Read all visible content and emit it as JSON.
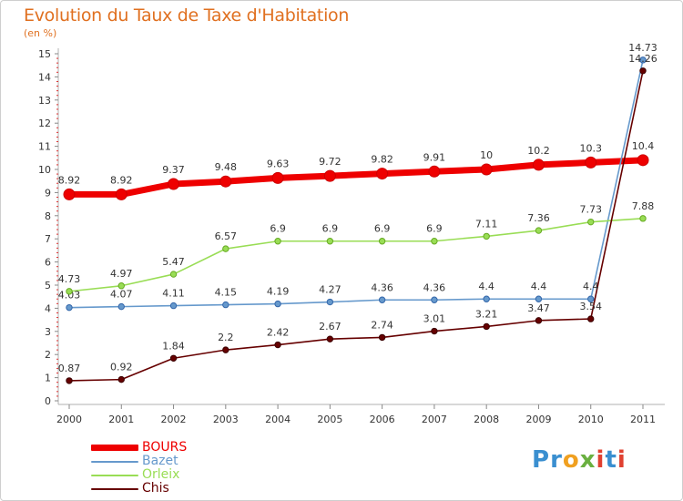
{
  "title": "Evolution du Taux de Taxe d'Habitation",
  "subtitle": "(en %)",
  "logo": {
    "text": "Proxiti",
    "colors": [
      "#3a8fd0",
      "#f0a020",
      "#6ab040",
      "#e04030"
    ]
  },
  "colors": {
    "BOURS": "#ee0000",
    "Bazet": "#6699cc",
    "Orleix": "#99dd55",
    "Chis": "#660000"
  },
  "chart_data": {
    "type": "line",
    "title": "Evolution du Taux de Taxe d'Habitation",
    "ylabel": "(en %)",
    "x": [
      "2000",
      "2001",
      "2002",
      "2003",
      "2004",
      "2005",
      "2006",
      "2007",
      "2008",
      "2009",
      "2010",
      "2011"
    ],
    "ylim": [
      0,
      15
    ],
    "yticks": [
      "0",
      "1",
      "2",
      "3",
      "4",
      "5",
      "6",
      "7",
      "8",
      "9",
      "10",
      "11",
      "12",
      "13",
      "14",
      "15"
    ],
    "grid": false,
    "legend": "bottom-left",
    "series": [
      {
        "name": "BOURS",
        "values": [
          8.92,
          8.92,
          9.37,
          9.48,
          9.63,
          9.72,
          9.82,
          9.91,
          10,
          10.2,
          10.3,
          10.4
        ],
        "labels": [
          "8.92",
          "8.92",
          "9.37",
          "9.48",
          "9.63",
          "9.72",
          "9.82",
          "9.91",
          "10",
          "10.2",
          "10.3",
          "10.4"
        ]
      },
      {
        "name": "Bazet",
        "values": [
          4.03,
          4.07,
          4.11,
          4.15,
          4.19,
          4.27,
          4.36,
          4.36,
          4.4,
          4.4,
          4.4,
          14.73
        ],
        "labels": [
          "4.03",
          "4.07",
          "4.11",
          "4.15",
          "4.19",
          "4.27",
          "4.36",
          "4.36",
          "4.4",
          "4.4",
          "4.4",
          "14.73"
        ]
      },
      {
        "name": "Orleix",
        "values": [
          4.73,
          4.97,
          5.47,
          6.57,
          6.9,
          6.9,
          6.9,
          6.9,
          7.11,
          7.36,
          7.73,
          7.88
        ],
        "labels": [
          "4.73",
          "4.97",
          "5.47",
          "6.57",
          "6.9",
          "6.9",
          "6.9",
          "6.9",
          "7.11",
          "7.36",
          "7.73",
          "7.88"
        ]
      },
      {
        "name": "Chis",
        "values": [
          0.87,
          0.92,
          1.84,
          2.2,
          2.42,
          2.67,
          2.74,
          3.01,
          3.21,
          3.47,
          3.54,
          14.26
        ],
        "labels": [
          "0.87",
          "0.92",
          "1.84",
          "2.2",
          "2.42",
          "2.67",
          "2.74",
          "3.01",
          "3.21",
          "3.47",
          "3.54",
          "14.26"
        ]
      }
    ]
  }
}
